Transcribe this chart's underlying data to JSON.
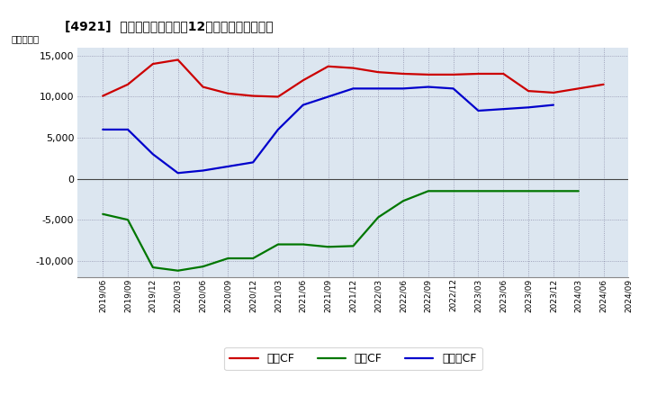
{
  "title": "[4921]  キャッシュフローの12か月移動合計の推移",
  "ylabel": "（百万円）",
  "background_color": "#ffffff",
  "plot_bg_color": "#dce6f0",
  "ylim": [
    -12000,
    16000
  ],
  "yticks": [
    -10000,
    -5000,
    0,
    5000,
    10000,
    15000
  ],
  "x_labels": [
    "2019/06",
    "2019/09",
    "2019/12",
    "2020/03",
    "2020/06",
    "2020/09",
    "2020/12",
    "2021/03",
    "2021/06",
    "2021/09",
    "2021/12",
    "2022/03",
    "2022/06",
    "2022/09",
    "2022/12",
    "2023/03",
    "2023/06",
    "2023/09",
    "2023/12",
    "2024/03",
    "2024/06",
    "2024/09"
  ],
  "eigyo_cf": [
    10100,
    11500,
    14000,
    14500,
    11200,
    10400,
    10100,
    10000,
    12000,
    13700,
    13500,
    13000,
    12800,
    12700,
    12700,
    12800,
    12800,
    10700,
    10500,
    11000,
    11500,
    null
  ],
  "toshi_cf": [
    -4300,
    -5000,
    -10800,
    -11200,
    -10700,
    -9700,
    -9700,
    -8000,
    -8000,
    -8300,
    -8200,
    -4700,
    -2700,
    -1500,
    -1500,
    -1500,
    -1500,
    -1500,
    -1500,
    -1500,
    null,
    null
  ],
  "free_cf": [
    6000,
    6000,
    3000,
    700,
    1000,
    1500,
    2000,
    6000,
    9000,
    10000,
    11000,
    11000,
    11000,
    11200,
    11000,
    8300,
    8500,
    8700,
    9000,
    null,
    null,
    null
  ],
  "eigyo_color": "#cc0000",
  "toshi_color": "#007700",
  "free_color": "#0000cc",
  "legend_labels": [
    "営業CF",
    "投資CF",
    "フリーCF"
  ]
}
